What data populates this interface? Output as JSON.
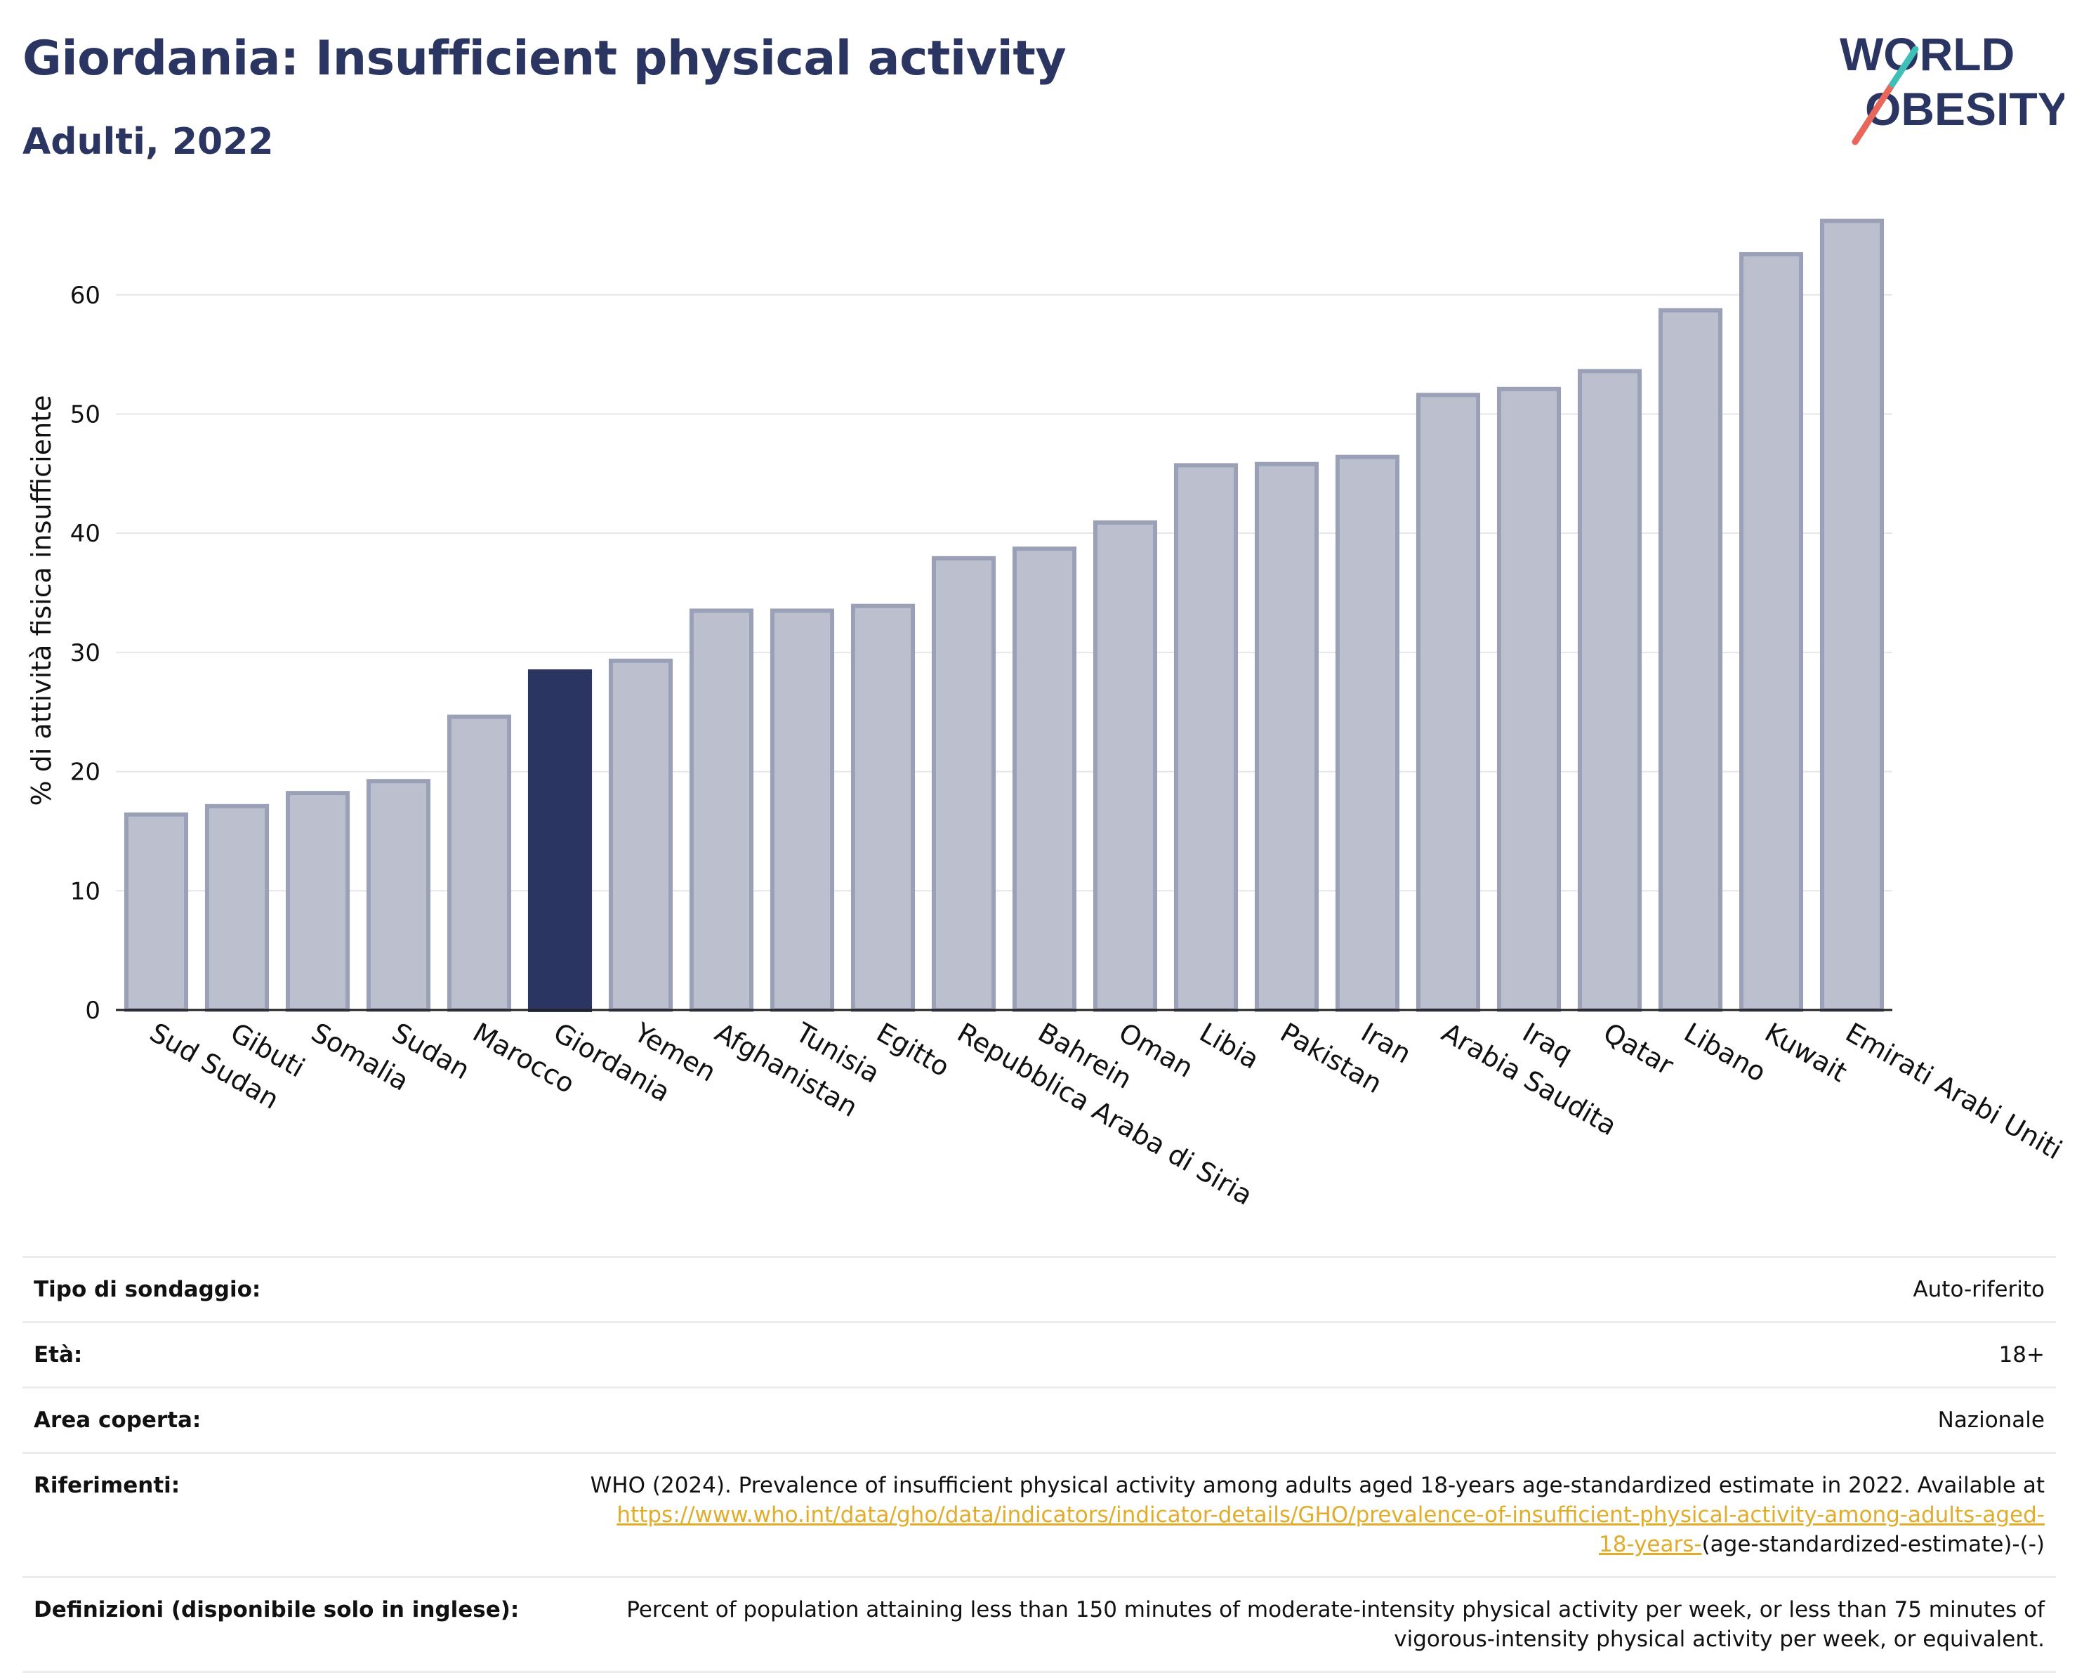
{
  "header": {
    "title": "Giordania: Insufficient physical activity",
    "subtitle": "Adulti, 2022"
  },
  "logo": {
    "line1": "WORLD",
    "line2": "OBESITY"
  },
  "colors": {
    "highlight": "#2b3561",
    "bar_fill": "#bcc0ce",
    "bar_stroke": "#9aa0b6",
    "text_dark": "#2b3561",
    "link": "#e0ac2a",
    "logo_teal": "#3fbfb5",
    "logo_red": "#e8665a"
  },
  "chart_data": {
    "type": "bar",
    "ylabel": "% di attività fisica insufficiente",
    "xlabel": "",
    "ylim": [
      0,
      68
    ],
    "yticks": [
      0,
      10,
      20,
      30,
      40,
      50,
      60
    ],
    "grid": true,
    "highlight": "Giordania",
    "categories": [
      "Sud Sudan",
      "Gibuti",
      "Somalia",
      "Sudan",
      "Marocco",
      "Giordania",
      "Yemen",
      "Afghanistan",
      "Tunisia",
      "Egitto",
      "Repubblica Araba di Siria",
      "Bahrein",
      "Oman",
      "Libia",
      "Pakistan",
      "Iran",
      "Arabia Saudita",
      "Iraq",
      "Qatar",
      "Libano",
      "Kuwait",
      "Emirati Arabi Uniti"
    ],
    "values": [
      16.4,
      17.1,
      18.2,
      19.2,
      24.6,
      28.4,
      29.3,
      33.5,
      33.5,
      33.9,
      37.9,
      38.7,
      40.9,
      45.7,
      45.8,
      46.4,
      51.6,
      52.1,
      53.6,
      58.7,
      63.4,
      66.2
    ]
  },
  "info": {
    "rows": [
      {
        "key": "Tipo di sondaggio:",
        "value": "Auto-riferito"
      },
      {
        "key": "Età:",
        "value": "18+"
      },
      {
        "key": "Area coperta:",
        "value": "Nazionale"
      }
    ],
    "references": {
      "key": "Riferimenti:",
      "text": "WHO (2024). Prevalence of insufficient physical activity among adults aged 18-years age-standardized estimate in 2022. Available at",
      "link_text": "https://www.who.int/data/gho/data/indicators/indicator-details/GHO/prevalence-of-insufficient-physical-activity-among-adults-aged-18-years-",
      "suffix": "(age-standardized-estimate)-(-)"
    },
    "definitions": {
      "key": "Definizioni (disponibile solo in inglese):",
      "value": "Percent of population attaining less than 150 minutes of moderate-intensity physical activity per week, or less than 75 minutes of vigorous-intensity physical activity per week, or equivalent."
    }
  }
}
